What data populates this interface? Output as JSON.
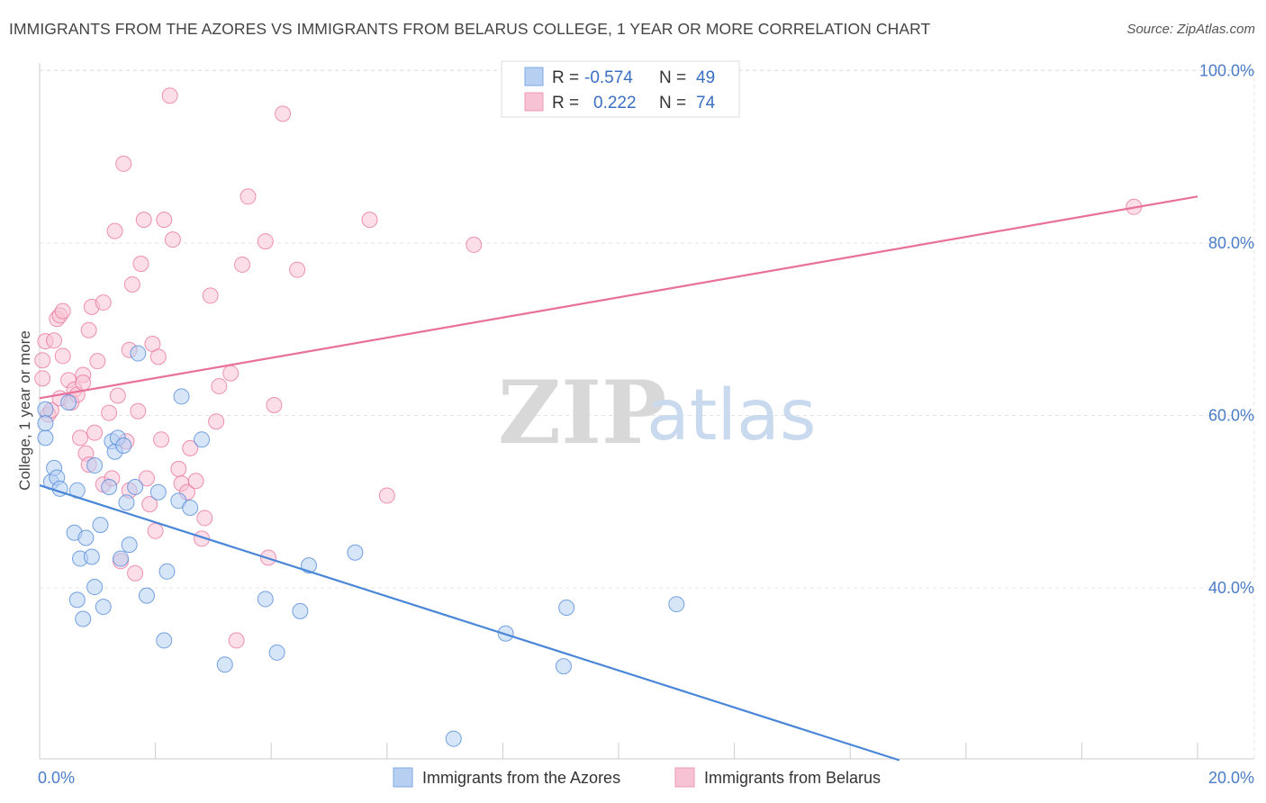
{
  "title": "IMMIGRANTS FROM THE AZORES VS IMMIGRANTS FROM BELARUS COLLEGE, 1 YEAR OR MORE CORRELATION CHART",
  "source": "Source: ZipAtlas.com",
  "watermark": {
    "zip": "ZIP",
    "atlas": "atlas"
  },
  "legend": {
    "r_label": "R =",
    "n_label": "N =",
    "rows": [
      {
        "r": "-0.574",
        "n": "49",
        "color": "#9bbfee"
      },
      {
        "r": "0.222",
        "n": "74",
        "color": "#f5b3c8"
      }
    ]
  },
  "chart_data": {
    "type": "scatter",
    "title": "IMMIGRANTS FROM THE AZORES VS IMMIGRANTS FROM BELARUS COLLEGE, 1 YEAR OR MORE CORRELATION CHART",
    "xlabel": "",
    "ylabel": "College, 1 year or more",
    "xlim": [
      0,
      20
    ],
    "ylim": [
      20,
      104
    ],
    "x_ticks": [
      "0.0%",
      "20.0%"
    ],
    "y_ticks": [
      {
        "value": 40,
        "label": "40.0%"
      },
      {
        "value": 60,
        "label": "60.0%"
      },
      {
        "value": 80,
        "label": "80.0%"
      },
      {
        "value": 100,
        "label": "100.0%"
      }
    ],
    "grid": true,
    "legend_position": "bottom",
    "series": [
      {
        "name": "Immigrants from the Azores",
        "color": "#4a86d8",
        "fill": "#b7d0f2",
        "trend": {
          "x": [
            0,
            14.85
          ],
          "y": [
            51.9,
            20.0
          ]
        },
        "points": [
          [
            0.1,
            60.7
          ],
          [
            0.1,
            57.4
          ],
          [
            0.1,
            59.1
          ],
          [
            0.2,
            52.3
          ],
          [
            0.25,
            53.9
          ],
          [
            0.3,
            52.8
          ],
          [
            0.35,
            51.5
          ],
          [
            0.5,
            61.5
          ],
          [
            0.6,
            46.4
          ],
          [
            0.65,
            51.3
          ],
          [
            0.65,
            38.6
          ],
          [
            0.7,
            43.4
          ],
          [
            0.75,
            36.4
          ],
          [
            0.8,
            45.8
          ],
          [
            0.9,
            43.6
          ],
          [
            0.95,
            54.2
          ],
          [
            0.95,
            40.1
          ],
          [
            1.05,
            47.3
          ],
          [
            1.1,
            37.8
          ],
          [
            1.2,
            51.7
          ],
          [
            1.25,
            57.0
          ],
          [
            1.3,
            55.8
          ],
          [
            1.35,
            57.4
          ],
          [
            1.4,
            43.4
          ],
          [
            1.45,
            56.5
          ],
          [
            1.5,
            49.9
          ],
          [
            1.55,
            45.0
          ],
          [
            1.65,
            51.7
          ],
          [
            1.7,
            67.2
          ],
          [
            1.85,
            39.1
          ],
          [
            2.05,
            51.1
          ],
          [
            2.15,
            33.9
          ],
          [
            2.2,
            41.9
          ],
          [
            2.4,
            50.1
          ],
          [
            2.45,
            62.2
          ],
          [
            2.6,
            49.3
          ],
          [
            2.8,
            57.2
          ],
          [
            3.2,
            31.1
          ],
          [
            3.9,
            38.7
          ],
          [
            4.1,
            32.5
          ],
          [
            4.5,
            37.3
          ],
          [
            4.65,
            42.6
          ],
          [
            5.45,
            44.1
          ],
          [
            7.15,
            22.5
          ],
          [
            8.05,
            34.7
          ],
          [
            9.05,
            30.9
          ],
          [
            9.1,
            37.7
          ],
          [
            11.0,
            38.1
          ]
        ]
      },
      {
        "name": "Immigrants from Belarus",
        "color": "#e8709a",
        "fill": "#f7c3d4",
        "trend": {
          "x": [
            0,
            20
          ],
          "y": [
            62.0,
            85.4
          ]
        },
        "points": [
          [
            0.05,
            66.4
          ],
          [
            0.05,
            64.3
          ],
          [
            0.1,
            68.6
          ],
          [
            0.15,
            60.1
          ],
          [
            0.2,
            60.6
          ],
          [
            0.25,
            68.7
          ],
          [
            0.3,
            71.2
          ],
          [
            0.35,
            71.6
          ],
          [
            0.35,
            62.0
          ],
          [
            0.4,
            66.9
          ],
          [
            0.4,
            72.1
          ],
          [
            0.5,
            64.1
          ],
          [
            0.55,
            61.5
          ],
          [
            0.6,
            63.0
          ],
          [
            0.65,
            62.4
          ],
          [
            0.7,
            57.4
          ],
          [
            0.75,
            64.7
          ],
          [
            0.75,
            63.8
          ],
          [
            0.8,
            55.6
          ],
          [
            0.85,
            54.3
          ],
          [
            0.85,
            69.9
          ],
          [
            0.9,
            72.6
          ],
          [
            0.95,
            58.0
          ],
          [
            1.0,
            66.3
          ],
          [
            1.1,
            73.1
          ],
          [
            1.1,
            52.0
          ],
          [
            1.2,
            60.3
          ],
          [
            1.25,
            52.7
          ],
          [
            1.3,
            81.4
          ],
          [
            1.35,
            62.3
          ],
          [
            1.4,
            43.1
          ],
          [
            1.45,
            89.2
          ],
          [
            1.5,
            57.0
          ],
          [
            1.55,
            67.6
          ],
          [
            1.55,
            51.3
          ],
          [
            1.6,
            75.2
          ],
          [
            1.65,
            41.7
          ],
          [
            1.7,
            60.5
          ],
          [
            1.75,
            77.6
          ],
          [
            1.8,
            82.7
          ],
          [
            1.85,
            52.7
          ],
          [
            1.9,
            49.7
          ],
          [
            1.95,
            68.3
          ],
          [
            2.0,
            46.6
          ],
          [
            2.05,
            66.8
          ],
          [
            2.1,
            57.2
          ],
          [
            2.15,
            82.7
          ],
          [
            2.25,
            97.1
          ],
          [
            2.3,
            80.4
          ],
          [
            2.4,
            53.8
          ],
          [
            2.45,
            52.1
          ],
          [
            2.55,
            51.1
          ],
          [
            2.6,
            56.2
          ],
          [
            2.7,
            52.4
          ],
          [
            2.8,
            45.7
          ],
          [
            2.85,
            48.1
          ],
          [
            2.95,
            73.9
          ],
          [
            3.05,
            59.3
          ],
          [
            3.1,
            63.4
          ],
          [
            3.3,
            64.9
          ],
          [
            3.4,
            33.9
          ],
          [
            3.5,
            77.5
          ],
          [
            3.6,
            85.4
          ],
          [
            3.9,
            80.2
          ],
          [
            3.95,
            43.5
          ],
          [
            4.05,
            61.2
          ],
          [
            4.2,
            95.0
          ],
          [
            4.45,
            76.9
          ],
          [
            5.7,
            82.7
          ],
          [
            6.0,
            50.7
          ],
          [
            7.5,
            79.8
          ],
          [
            18.9,
            84.2
          ]
        ]
      }
    ]
  },
  "labels": {
    "x_min": "0.0%",
    "x_max": "20.0%",
    "y_axis_title": "College, 1 year or more",
    "series_a": "Immigrants from the Azores",
    "series_b": "Immigrants from Belarus"
  }
}
